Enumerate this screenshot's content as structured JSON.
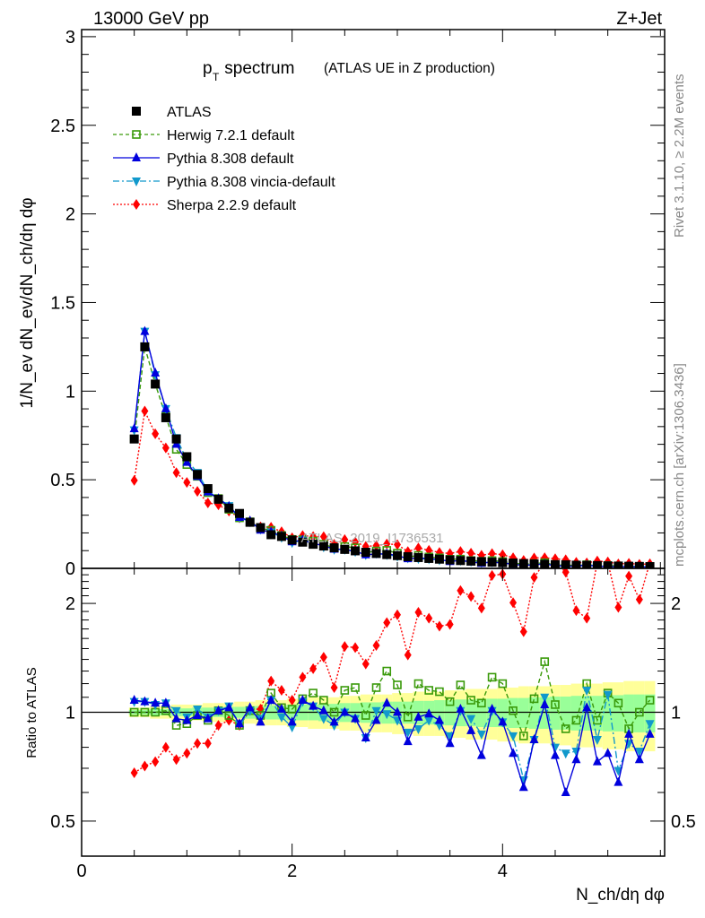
{
  "header": {
    "left": "13000 GeV pp",
    "right": "Z+Jet"
  },
  "side_text": {
    "top": "Rivet 3.1.10, ≥ 2.2M events",
    "bottom": "mcplots.cern.ch [arXiv:1306.3436]"
  },
  "watermark": "ATLAS_2019_I1736531",
  "colors": {
    "atlas": "#000000",
    "herwig": "#3a9a0a",
    "pythia": "#0000dd",
    "vincia": "#1199cc",
    "sherpa": "#ff0000",
    "band_outer": "#ffff99",
    "band_inner": "#99ff99"
  },
  "chart_data": [
    {
      "type": "line",
      "panel": "main",
      "title_main": "p",
      "title_sub": "T",
      "title_rest": " spectrum",
      "title_paren": "(ATLAS UE in Z production)",
      "ylabel": "1/N_ev dN_ev/dN_ch/dη dφ",
      "ylim": [
        0,
        3.04
      ],
      "yticks": [
        "0",
        "0.5",
        "1",
        "1.5",
        "2",
        "2.5",
        "3"
      ],
      "x": [
        0.5,
        0.6,
        0.7,
        0.8,
        0.9,
        1.0,
        1.1,
        1.2,
        1.3,
        1.4,
        1.5,
        1.6,
        1.7,
        1.8,
        1.9,
        2.0,
        2.1,
        2.2,
        2.3,
        2.4,
        2.5,
        2.6,
        2.7,
        2.8,
        2.9,
        3.0,
        3.1,
        3.2,
        3.3,
        3.4,
        3.5,
        3.6,
        3.7,
        3.8,
        3.9,
        4.0,
        4.1,
        4.2,
        4.3,
        4.4,
        4.5,
        4.6,
        4.7,
        4.8,
        4.9,
        5.0,
        5.1,
        5.2,
        5.3,
        5.4
      ],
      "reference": {
        "name": "ATLAS",
        "values": [
          0.73,
          1.25,
          1.04,
          0.85,
          0.73,
          0.63,
          0.53,
          0.45,
          0.39,
          0.34,
          0.31,
          0.26,
          0.23,
          0.19,
          0.18,
          0.16,
          0.148,
          0.136,
          0.126,
          0.116,
          0.107,
          0.099,
          0.091,
          0.084,
          0.078,
          0.072,
          0.066,
          0.061,
          0.056,
          0.052,
          0.048,
          0.044,
          0.041,
          0.038,
          0.035,
          0.032,
          0.03,
          0.027,
          0.025,
          0.023,
          0.021,
          0.02,
          0.018,
          0.017,
          0.016,
          0.014,
          0.013,
          0.012,
          0.011,
          0.01
        ]
      },
      "legend": [
        "ATLAS",
        "Herwig 7.2.1 default",
        "Pythia 8.308 default",
        "Pythia 8.308 vincia-default",
        "Sherpa 2.2.9 default"
      ],
      "legend_placement": "top-left"
    },
    {
      "type": "line",
      "panel": "ratio",
      "ylabel": "Ratio to ATLAS",
      "yscale": "log",
      "ylim": [
        0.4,
        2.5
      ],
      "yticks": [
        "0.5",
        "1",
        "2"
      ],
      "xlabel": "N_ch/dη dφ",
      "xticks": [
        "0",
        "2",
        "4"
      ],
      "xlim": [
        0,
        5.54
      ],
      "band_outer": [
        0.03,
        0.03,
        0.04,
        0.04,
        0.05,
        0.05,
        0.05,
        0.06,
        0.06,
        0.06,
        0.07,
        0.07,
        0.08,
        0.08,
        0.08,
        0.09,
        0.09,
        0.1,
        0.1,
        0.1,
        0.11,
        0.11,
        0.12,
        0.12,
        0.12,
        0.13,
        0.13,
        0.14,
        0.14,
        0.14,
        0.15,
        0.15,
        0.16,
        0.16,
        0.16,
        0.17,
        0.17,
        0.18,
        0.18,
        0.18,
        0.19,
        0.19,
        0.2,
        0.2,
        0.2,
        0.21,
        0.21,
        0.22,
        0.22,
        0.22
      ],
      "band_inner": [
        0.015,
        0.015,
        0.02,
        0.02,
        0.025,
        0.025,
        0.03,
        0.03,
        0.03,
        0.035,
        0.035,
        0.04,
        0.04,
        0.045,
        0.045,
        0.05,
        0.05,
        0.05,
        0.055,
        0.055,
        0.06,
        0.06,
        0.065,
        0.065,
        0.07,
        0.07,
        0.07,
        0.075,
        0.075,
        0.08,
        0.08,
        0.085,
        0.085,
        0.09,
        0.09,
        0.09,
        0.095,
        0.095,
        0.1,
        0.1,
        0.105,
        0.105,
        0.11,
        0.11,
        0.11,
        0.115,
        0.115,
        0.12,
        0.12,
        0.12
      ],
      "series": [
        {
          "key": "herwig",
          "name": "Herwig 7.2.1 default",
          "marker": "open-square",
          "dash": "5,3",
          "ratio": [
            1.0,
            1.0,
            1.0,
            1.01,
            0.92,
            0.93,
            0.98,
            0.95,
            1.01,
            0.98,
            0.92,
            1.01,
            0.98,
            1.13,
            1.03,
            1.02,
            1.09,
            1.13,
            1.08,
            1.0,
            1.15,
            1.17,
            0.98,
            1.17,
            1.3,
            1.19,
            0.97,
            1.2,
            1.15,
            1.14,
            1.07,
            1.19,
            1.08,
            1.06,
            1.25,
            1.2,
            1.01,
            0.86,
            1.09,
            1.38,
            1.05,
            0.9,
            0.95,
            1.2,
            0.95,
            1.13,
            1.06,
            0.9,
            1.0,
            1.08
          ]
        },
        {
          "key": "pythia",
          "name": "Pythia 8.308 default",
          "marker": "triangle-up",
          "dash": "",
          "ratio": [
            1.08,
            1.07,
            1.06,
            1.06,
            0.96,
            0.95,
            0.98,
            0.96,
            1.01,
            1.03,
            0.93,
            1.03,
            0.94,
            1.08,
            1.02,
            0.94,
            1.08,
            1.04,
            1.01,
            0.94,
            1.0,
            0.96,
            0.85,
            0.95,
            1.06,
            1.0,
            0.83,
            0.97,
            0.99,
            0.95,
            0.82,
            1.02,
            0.89,
            0.76,
            1.02,
            0.94,
            0.77,
            0.62,
            0.84,
            1.05,
            0.76,
            0.6,
            0.74,
            1.03,
            0.73,
            0.77,
            0.64,
            0.87,
            0.74,
            0.87
          ]
        },
        {
          "key": "vincia",
          "name": "Pythia 8.308 vincia-default",
          "marker": "triangle-down",
          "dash": "8,3,2,3",
          "ratio": [
            1.07,
            1.07,
            1.05,
            1.06,
            1.01,
            0.97,
            1.02,
            0.97,
            1.01,
            1.04,
            0.93,
            1.01,
            0.96,
            1.08,
            0.97,
            0.91,
            1.07,
            1.04,
            0.96,
            0.92,
            1.0,
            0.96,
            0.85,
            1.01,
            0.99,
            0.95,
            0.88,
            0.9,
            0.95,
            0.92,
            0.86,
            1.01,
            0.96,
            0.87,
            1.01,
            0.94,
            0.86,
            0.65,
            0.84,
            1.1,
            0.8,
            0.77,
            0.78,
            1.15,
            0.84,
            1.12,
            0.69,
            0.82,
            0.78,
            0.93
          ]
        },
        {
          "key": "sherpa",
          "name": "Sherpa 2.2.9 default",
          "marker": "diamond",
          "dash": "2,2",
          "ratio": [
            0.68,
            0.71,
            0.73,
            0.8,
            0.74,
            0.77,
            0.82,
            0.82,
            0.92,
            0.95,
            0.92,
            1.02,
            1.02,
            1.22,
            1.15,
            1.08,
            1.25,
            1.32,
            1.42,
            1.17,
            1.52,
            1.51,
            1.36,
            1.53,
            1.77,
            1.86,
            1.44,
            1.89,
            1.82,
            1.73,
            1.75,
            2.17,
            2.09,
            1.94,
            2.39,
            2.41,
            2.01,
            1.67,
            2.36,
            2.6,
            2.6,
            2.44,
            1.91,
            1.82,
            2.6,
            2.6,
            1.95,
            2.38,
            2.05,
            2.6
          ]
        }
      ]
    }
  ]
}
